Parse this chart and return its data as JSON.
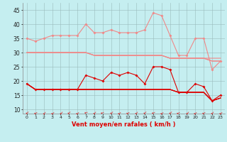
{
  "x": [
    0,
    1,
    2,
    3,
    4,
    5,
    6,
    7,
    8,
    9,
    10,
    11,
    12,
    13,
    14,
    15,
    16,
    17,
    18,
    19,
    20,
    21,
    22,
    23
  ],
  "line_gust_hi": [
    35,
    34,
    35,
    36,
    36,
    36,
    36,
    40,
    37,
    37,
    38,
    37,
    37,
    37,
    38,
    44,
    43,
    36,
    29,
    29,
    35,
    35,
    24,
    27
  ],
  "line_gust_lo1": [
    30,
    30,
    30,
    30,
    30,
    30,
    30,
    30,
    29,
    29,
    29,
    29,
    29,
    29,
    29,
    29,
    29,
    28,
    28,
    28,
    28,
    28,
    28,
    28
  ],
  "line_gust_lo2": [
    30,
    30,
    30,
    30,
    30,
    30,
    30,
    30,
    29,
    29,
    29,
    29,
    29,
    29,
    29,
    29,
    29,
    28,
    28,
    28,
    28,
    28,
    27,
    27
  ],
  "line_gust_lo3": [
    30,
    30,
    30,
    30,
    30,
    30,
    30,
    30,
    29,
    29,
    29,
    29,
    29,
    29,
    29,
    29,
    29,
    28,
    28,
    28,
    28,
    28,
    27,
    27
  ],
  "line_wind_hi": [
    19,
    17,
    17,
    17,
    17,
    17,
    17,
    22,
    21,
    20,
    23,
    22,
    23,
    22,
    19,
    25,
    25,
    24,
    16,
    16,
    19,
    18,
    13,
    15
  ],
  "line_wind_lo1": [
    19,
    17,
    17,
    17,
    17,
    17,
    17,
    17,
    17,
    17,
    17,
    17,
    17,
    17,
    17,
    17,
    17,
    17,
    16,
    16,
    16,
    16,
    13,
    14
  ],
  "line_wind_lo2": [
    19,
    17,
    17,
    17,
    17,
    17,
    17,
    17,
    17,
    17,
    17,
    17,
    17,
    17,
    17,
    17,
    17,
    17,
    16,
    16,
    16,
    16,
    13,
    14
  ],
  "line_wind_lo3": [
    19,
    17,
    17,
    17,
    17,
    17,
    17,
    17,
    17,
    17,
    17,
    17,
    17,
    17,
    17,
    17,
    17,
    17,
    16,
    16,
    16,
    16,
    13,
    14
  ],
  "color_light": "#F08888",
  "color_dark": "#DD0000",
  "bg_color": "#C5EEF0",
  "grid_color": "#99BBBB",
  "xlabel": "Vent moyen/en rafales ( km/h )",
  "yticks": [
    10,
    15,
    20,
    25,
    30,
    35,
    40,
    45
  ],
  "ylim": [
    8.5,
    47.5
  ],
  "xlim": [
    -0.5,
    23.5
  ],
  "arrow_angles": [
    220,
    210,
    230,
    215,
    225,
    220,
    215,
    200,
    225,
    205,
    220,
    215,
    210,
    225,
    220,
    205,
    215,
    220,
    210,
    225,
    215,
    210,
    225,
    215
  ]
}
